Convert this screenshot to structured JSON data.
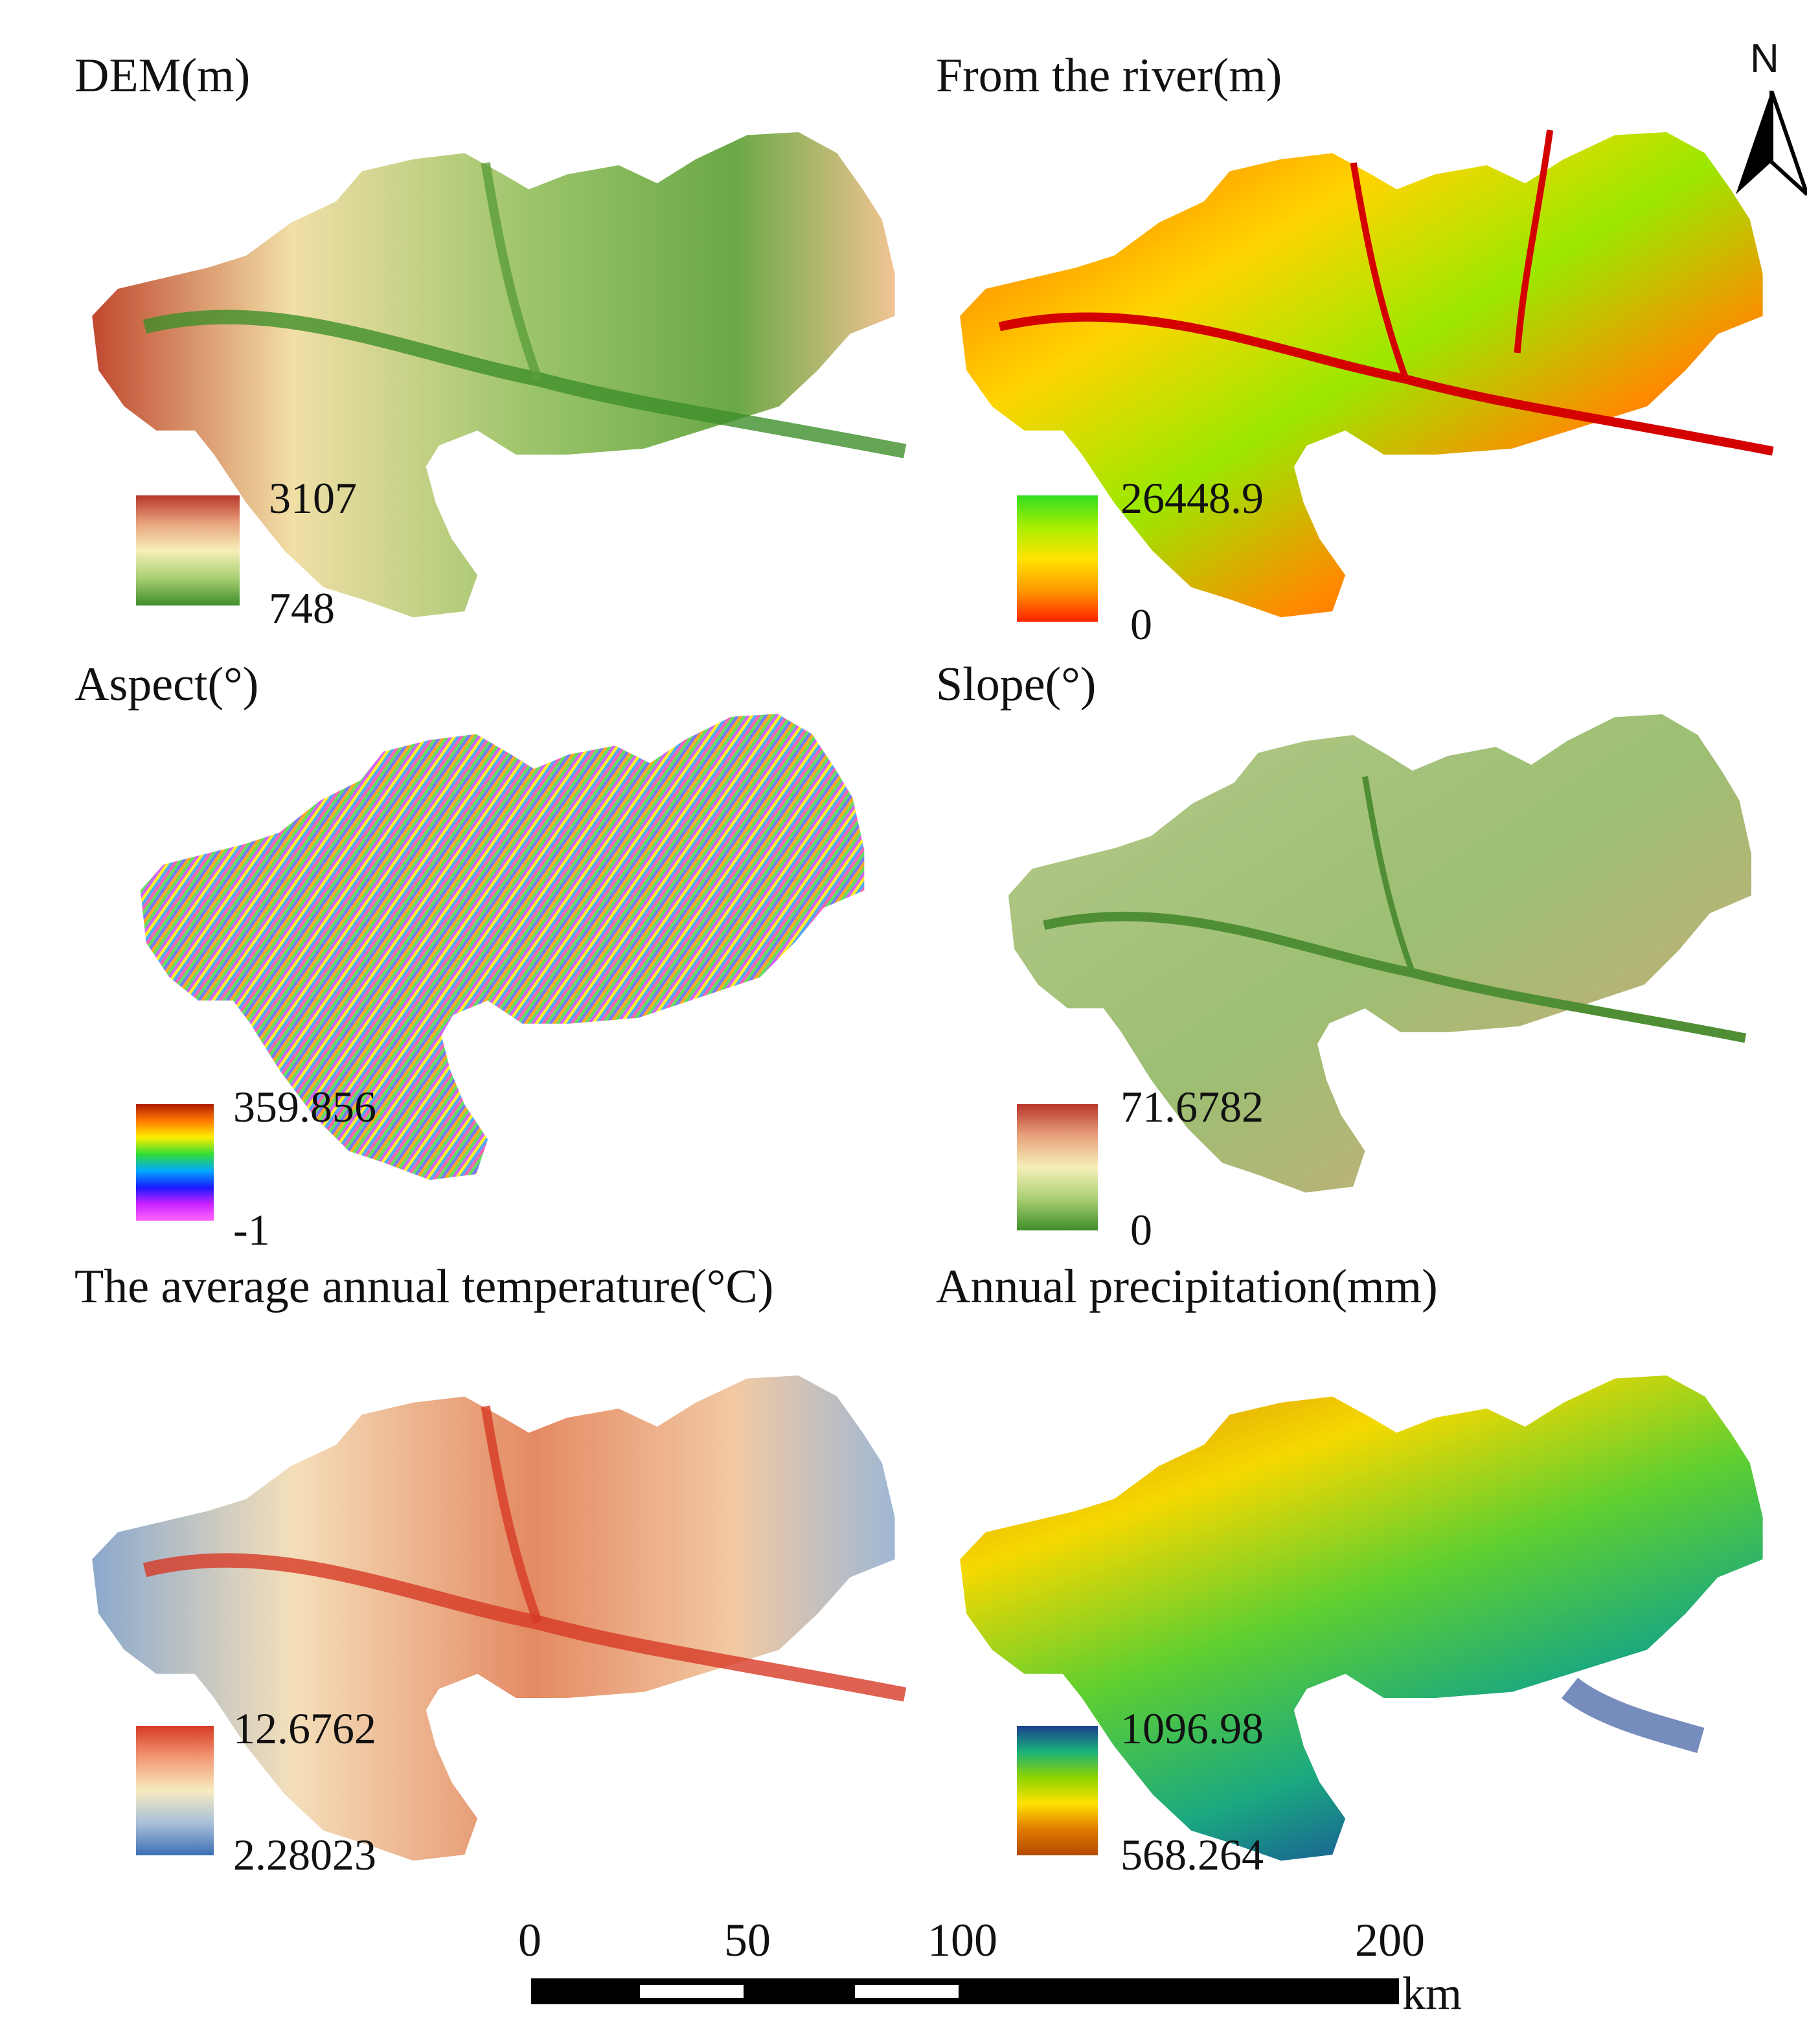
{
  "panels": [
    {
      "id": "dem",
      "title": "DEM(m)",
      "legend_max": "3107",
      "legend_min": "748",
      "colors": [
        "#b8372a",
        "#e8a27c",
        "#f6efb8",
        "#a9cf72",
        "#3f8e2a"
      ]
    },
    {
      "id": "river",
      "title": "From the river(m)",
      "legend_max": "26448.9",
      "legend_min": "0",
      "colors": [
        "#33dd22",
        "#a8ee00",
        "#ffe400",
        "#ff9a00",
        "#ff2200"
      ]
    },
    {
      "id": "aspect",
      "title": "Aspect(°)",
      "legend_max": "359.856",
      "legend_min": "-1",
      "colors": [
        "#ae1c00",
        "#ff7a00",
        "#ffee00",
        "#33dd33",
        "#00aaff",
        "#1a1aff",
        "#cc22ff",
        "#ff66ff"
      ]
    },
    {
      "id": "slope",
      "title": "Slope(°)",
      "legend_max": "71.6782",
      "legend_min": "0",
      "colors": [
        "#b8372a",
        "#e8a27c",
        "#f6efb8",
        "#a9cf72",
        "#3f8e2a"
      ]
    },
    {
      "id": "temp",
      "title": "The average annual temperature(°C)",
      "legend_max": "12.6762",
      "legend_min": "2.28023",
      "colors": [
        "#d73a25",
        "#f29b76",
        "#f7ebc0",
        "#a9c0d8",
        "#3c6fb5"
      ]
    },
    {
      "id": "precip",
      "title": "Annual precipitation(mm)",
      "legend_max": "1096.98",
      "legend_min": "568.264",
      "colors": [
        "#1a3f8f",
        "#1bb27a",
        "#8fd400",
        "#ffe200",
        "#e07a00",
        "#b34a00"
      ]
    }
  ],
  "north_arrow": {
    "label": "N",
    "icon": "north-arrow-icon"
  },
  "scale_bar": {
    "labels": [
      "0",
      "50",
      "100",
      "200"
    ],
    "unit": "km"
  }
}
